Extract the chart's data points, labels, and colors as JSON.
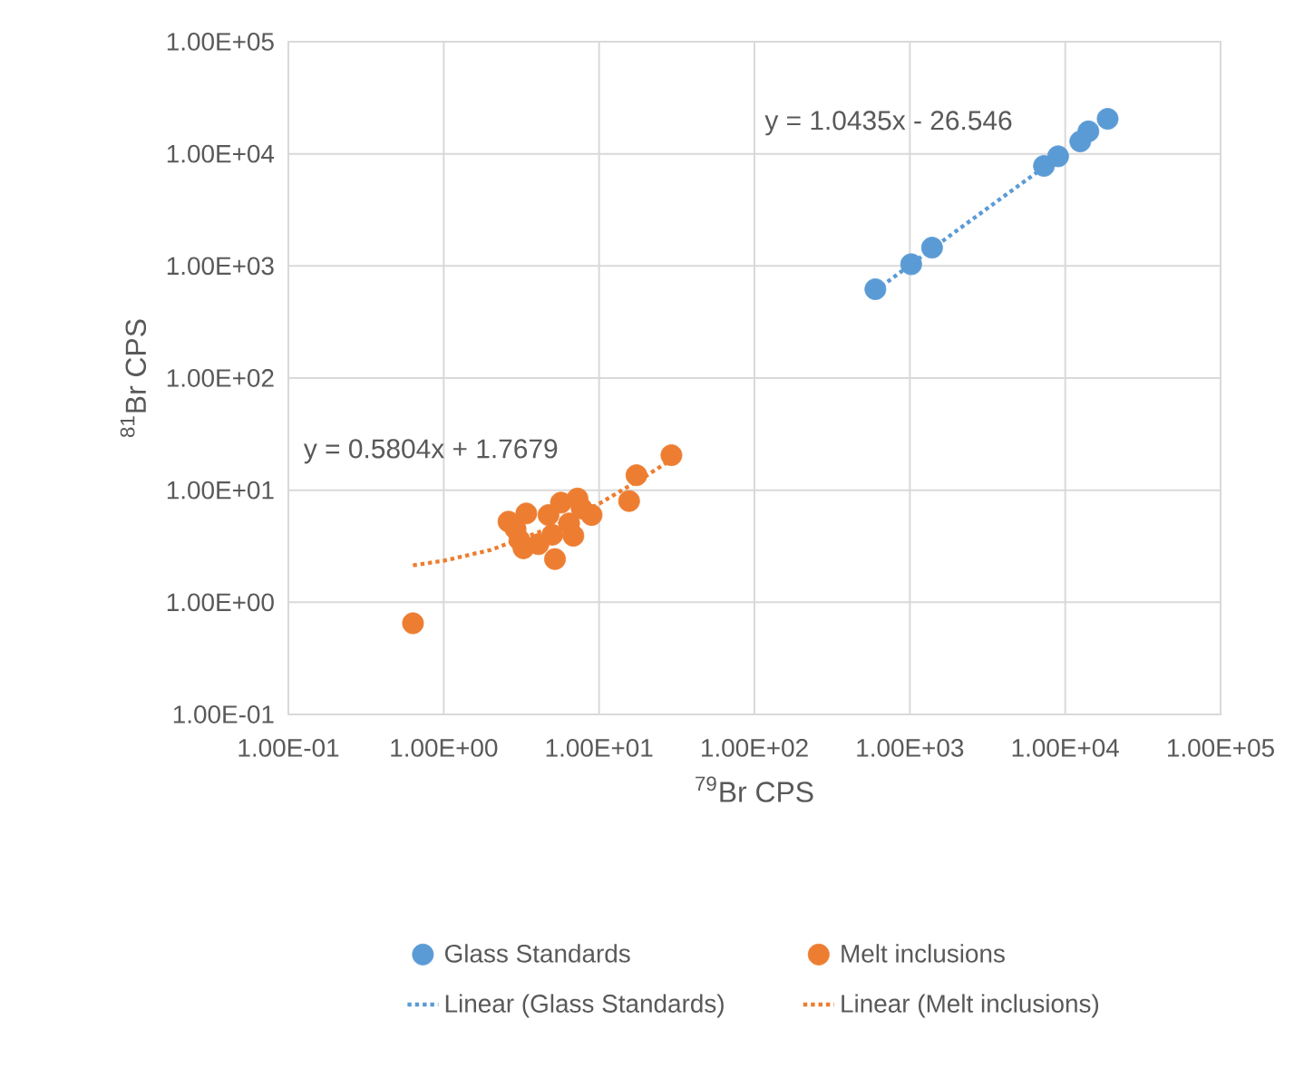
{
  "chart_data": {
    "type": "scatter",
    "xlabel": "$^{79}$Br CPS",
    "ylabel": "$^{81}$Br CPS",
    "log": "xy",
    "grid": true,
    "legend": "bottom",
    "marker": "circle",
    "xlim": [
      0.1,
      100000
    ],
    "ylim": [
      0.1,
      100000
    ],
    "xticks": [
      {
        "value": 0.1,
        "label": "1.00E-01"
      },
      {
        "value": 1,
        "label": "1.00E+00"
      },
      {
        "value": 10,
        "label": "1.00E+01"
      },
      {
        "value": 100,
        "label": "1.00E+02"
      },
      {
        "value": 1000,
        "label": "1.00E+03"
      },
      {
        "value": 10000,
        "label": "1.00E+04"
      },
      {
        "value": 100000,
        "label": "1.00E+05"
      }
    ],
    "yticks": [
      {
        "value": 0.1,
        "label": "1.00E-01"
      },
      {
        "value": 1,
        "label": "1.00E+00"
      },
      {
        "value": 10,
        "label": "1.00E+01"
      },
      {
        "value": 100,
        "label": "1.00E+02"
      },
      {
        "value": 1000,
        "label": "1.00E+03"
      },
      {
        "value": 10000,
        "label": "1.00E+04"
      },
      {
        "value": 100000,
        "label": "1.00E+05"
      }
    ],
    "series": [
      {
        "name": "Glass Standards",
        "color": "#5b9bd5",
        "x": [
          600,
          1020,
          1390,
          7300,
          9000,
          12500,
          14100,
          18760
        ],
        "values": [
          620,
          1035,
          1455,
          7800,
          9500,
          12900,
          15850,
          20500
        ]
      },
      {
        "name": "Melt inclusions",
        "color": "#ed7d31",
        "x": [
          0.634,
          2.61,
          2.9,
          3.07,
          3.26,
          3.4,
          4.07,
          4.72,
          5.0,
          5.2,
          5.68,
          6.41,
          6.83,
          7.26,
          7.72,
          8.95,
          15.6,
          17.4,
          29.2
        ],
        "values": [
          0.65,
          5.24,
          4.5,
          3.6,
          3.03,
          6.2,
          3.3,
          6.0,
          4.0,
          2.43,
          7.74,
          5.06,
          3.92,
          8.43,
          6.87,
          6.0,
          8.0,
          13.6,
          20.5
        ]
      },
      {
        "name": "Linear (Glass Standards)",
        "type": "line",
        "line_style": "dotted",
        "marker": "none",
        "color": "#5b9bd5",
        "x": [
          600,
          1000,
          2000,
          4000,
          8000
        ],
        "values": [
          599.6,
          1017,
          2060,
          4147,
          8321
        ]
      },
      {
        "name": "Linear (Melt inclusions)",
        "type": "line",
        "line_style": "dotted",
        "marker": "none",
        "color": "#ed7d31",
        "x": [
          0.634,
          1,
          2,
          5,
          10,
          20,
          29.2
        ],
        "values": [
          2.136,
          2.348,
          2.929,
          4.67,
          7.572,
          13.376,
          18.716
        ]
      }
    ],
    "annotations": [
      "y = 1.0435x - 26.546",
      "y = 0.5804x + 1.7679"
    ]
  }
}
